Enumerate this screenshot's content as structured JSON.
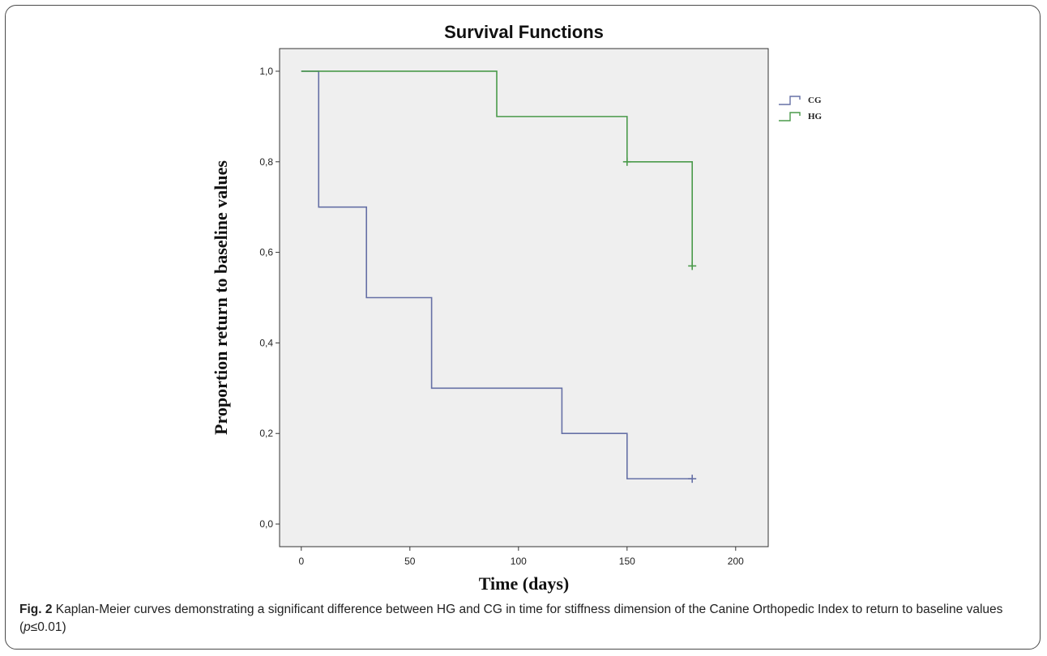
{
  "chart_data": {
    "type": "line",
    "title": "Survival Functions",
    "xlabel": "Time (days)",
    "ylabel": "Proportion return to baseline values",
    "xlim": [
      -10,
      215
    ],
    "ylim": [
      -0.05,
      1.05
    ],
    "xticks": [
      0,
      50,
      100,
      150,
      200
    ],
    "xtick_labels": [
      "0",
      "50",
      "100",
      "150",
      "200"
    ],
    "yticks": [
      0.0,
      0.2,
      0.4,
      0.6,
      0.8,
      1.0
    ],
    "ytick_labels": [
      "0,0",
      "0,2",
      "0,4",
      "0,6",
      "0,8",
      "1,0"
    ],
    "step": true,
    "grid": false,
    "legend_position": "right",
    "series": [
      {
        "name": "CG",
        "color": "#6670a6",
        "points": [
          [
            0,
            1.0
          ],
          [
            8,
            1.0
          ],
          [
            8,
            0.7
          ],
          [
            30,
            0.7
          ],
          [
            30,
            0.5
          ],
          [
            60,
            0.5
          ],
          [
            60,
            0.3
          ],
          [
            120,
            0.3
          ],
          [
            120,
            0.2
          ],
          [
            150,
            0.2
          ],
          [
            150,
            0.1
          ],
          [
            180,
            0.1
          ]
        ],
        "censored": [
          [
            180,
            0.1
          ]
        ]
      },
      {
        "name": "HG",
        "color": "#4a9a4a",
        "points": [
          [
            0,
            1.0
          ],
          [
            90,
            1.0
          ],
          [
            90,
            0.9
          ],
          [
            150,
            0.9
          ],
          [
            150,
            0.8
          ],
          [
            180,
            0.8
          ],
          [
            180,
            0.57
          ]
        ],
        "censored": [
          [
            150,
            0.8
          ],
          [
            180,
            0.57
          ]
        ]
      }
    ]
  },
  "caption": {
    "label": "Fig. 2",
    "text_before": " Kaplan-Meier curves demonstrating a significant difference between HG and CG in time for stiffness dimension of the Canine Orthopedic Index to return to baseline values (",
    "italic": "p",
    "text_after": "≤0.01)"
  },
  "colors": {
    "plot_background": "#efefef",
    "frame_border": "#4a4a4a"
  }
}
